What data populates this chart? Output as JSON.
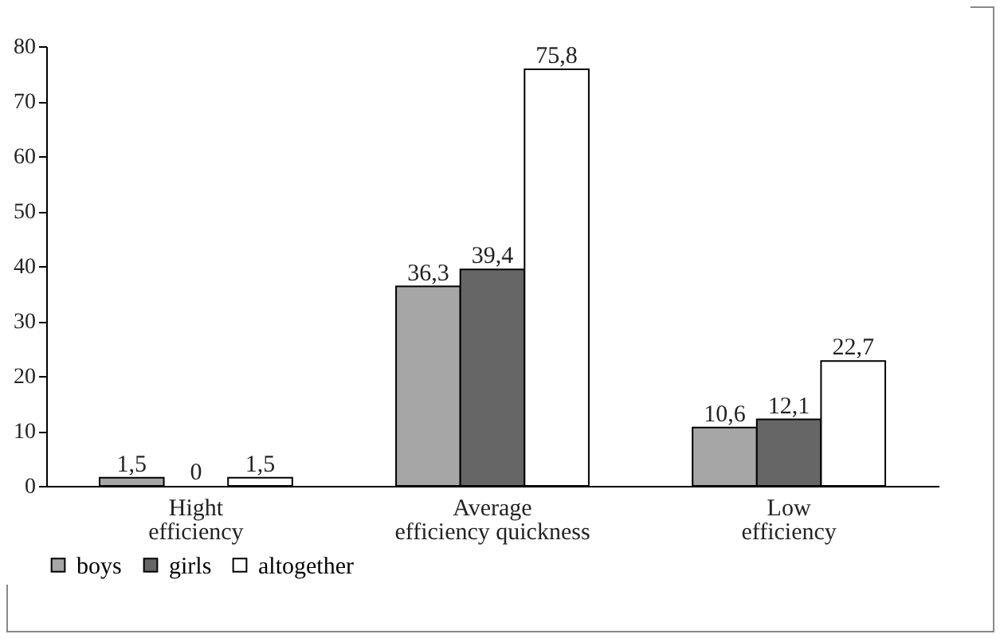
{
  "chart_data": {
    "type": "bar",
    "categories": [
      "Hight efficiency",
      "Average efficiency quickness",
      "Low efficiency"
    ],
    "series": [
      {
        "name": "boys",
        "color": "#a6a6a6",
        "values": [
          1.5,
          36.3,
          10.6
        ],
        "value_labels": [
          "1,5",
          "36,3",
          "10,6"
        ]
      },
      {
        "name": "girls",
        "color": "#666666",
        "values": [
          0,
          39.4,
          12.1
        ],
        "value_labels": [
          "0",
          "39,4",
          "12,1"
        ]
      },
      {
        "name": "altogether",
        "color": "#ffffff",
        "values": [
          1.5,
          75.8,
          22.7
        ],
        "value_labels": [
          "1,5",
          "75,8",
          "22,7"
        ]
      }
    ],
    "ylim": [
      0,
      80
    ],
    "yticks": [
      0,
      10,
      20,
      30,
      40,
      50,
      60,
      70,
      80
    ],
    "grid": false,
    "legend": "bottom left"
  }
}
